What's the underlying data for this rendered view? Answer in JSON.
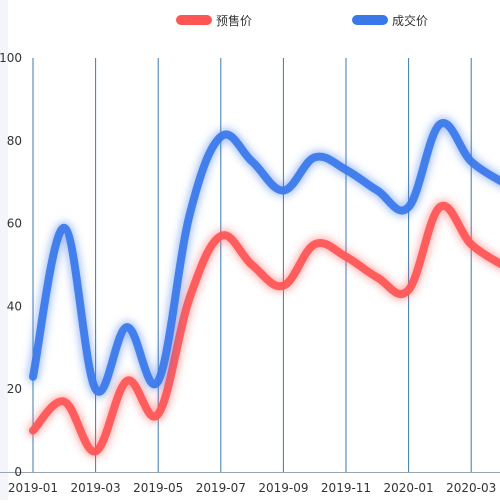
{
  "chart_data": {
    "type": "line",
    "title": "",
    "xlabel": "",
    "ylabel": "",
    "ylim": [
      0,
      100
    ],
    "y_ticks": [
      0,
      20,
      40,
      60,
      80,
      100
    ],
    "x": [
      "2019-01",
      "2019-02",
      "2019-03",
      "2019-04",
      "2019-05",
      "2019-06",
      "2019-07",
      "2019-08",
      "2019-09",
      "2019-10",
      "2019-11",
      "2019-12",
      "2020-01",
      "2020-02",
      "2020-03",
      "2020-04"
    ],
    "x_tick_labels": [
      "2019-01",
      "2019-03",
      "2019-05",
      "2019-07",
      "2019-09",
      "2019-11",
      "2020-01",
      "2020-03"
    ],
    "grid": "vertical",
    "legend_position": "top",
    "series": [
      {
        "name": "预售价",
        "color": "#ff5555",
        "values": [
          10,
          17,
          5,
          22,
          14,
          42,
          57,
          50,
          45,
          55,
          52,
          47,
          44,
          64,
          55,
          50
        ]
      },
      {
        "name": "成交价",
        "color": "#3a78ea",
        "values": [
          23,
          59,
          20,
          35,
          22,
          62,
          81,
          75,
          68,
          76,
          73,
          68,
          64,
          84,
          75,
          70
        ]
      }
    ]
  }
}
